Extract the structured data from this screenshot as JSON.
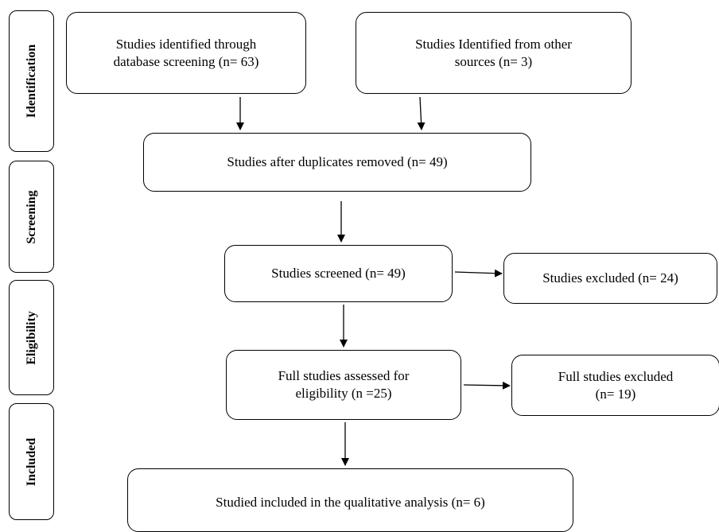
{
  "stages": {
    "identification": "Identification",
    "screening": "Screening",
    "eligibility": "Eligibility",
    "included": "Included"
  },
  "boxes": {
    "database": "Studies identified through\ndatabase screening (n= 63)",
    "other_sources": "Studies Identified from other\nsources (n= 3)",
    "after_duplicates": "Studies after duplicates removed (n= 49)",
    "screened": "Studies screened (n= 49)",
    "excluded": "Studies excluded (n= 24)",
    "full_assessed": "Full studies assessed for\neligibility (n =25)",
    "full_excluded": "Full studies excluded\n(n= 19)",
    "included": "Studied included in the qualitative analysis (n= 6)"
  }
}
